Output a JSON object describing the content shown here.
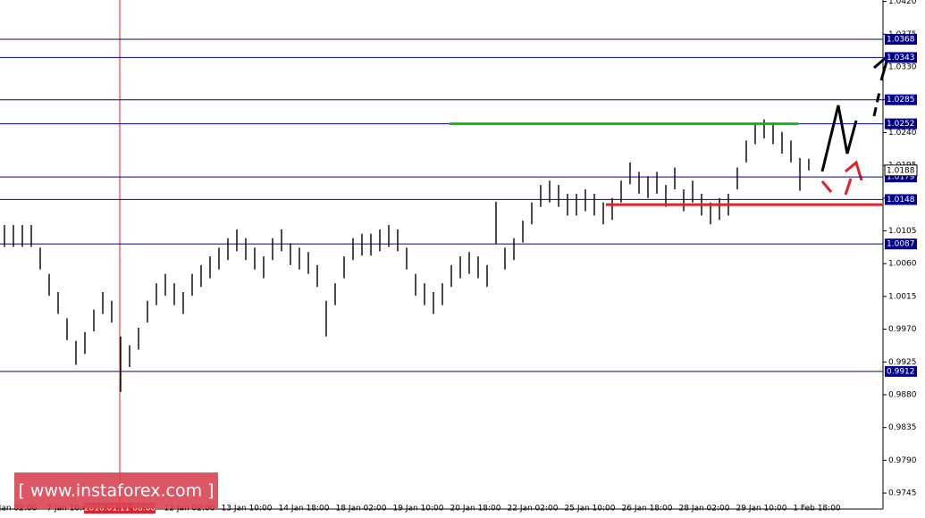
{
  "chart_data": {
    "type": "hilo",
    "color": "#000000",
    "high": [
      1.0113,
      1.0113,
      1.0113,
      1.0113,
      1.0082,
      1.0046,
      1.0021,
      0.9985,
      0.9954,
      0.9966,
      0.9997,
      1.0021,
      1.0009,
      0.996,
      0.9948,
      0.9972,
      1.0009,
      1.0033,
      1.0046,
      1.0033,
      1.0021,
      1.0046,
      1.0058,
      1.007,
      1.0082,
      1.0095,
      1.0107,
      1.0095,
      1.0082,
      1.007,
      1.0095,
      1.0107,
      1.0088,
      1.0082,
      1.0076,
      1.0058,
      1.0009,
      1.0033,
      1.007,
      1.0095,
      1.0101,
      1.0101,
      1.0107,
      1.0113,
      1.0107,
      1.0082,
      1.0046,
      1.0033,
      1.0021,
      1.0033,
      1.0058,
      1.007,
      1.0076,
      1.007,
      1.0058,
      1.0145,
      1.0082,
      1.0095,
      1.0119,
      1.0144,
      1.0168,
      1.0174,
      1.0168,
      1.0156,
      1.0156,
      1.0162,
      1.0156,
      1.0144,
      1.015,
      1.0174,
      1.0199,
      1.0186,
      1.018,
      1.0186,
      1.0168,
      1.0192,
      1.0162,
      1.0174,
      1.0156,
      1.0144,
      1.015,
      1.0156,
      1.0192,
      1.0229,
      1.0254,
      1.0258,
      1.0254,
      1.0241,
      1.0229,
      1.0205,
      1.0204
    ],
    "low": [
      1.0083,
      1.0083,
      1.0083,
      1.0083,
      1.0052,
      1.0016,
      0.9991,
      0.9955,
      0.9921,
      0.9936,
      0.9967,
      0.9991,
      0.9979,
      0.9884,
      0.9918,
      0.9942,
      0.9979,
      1.0003,
      1.0016,
      1.0003,
      0.9991,
      1.0016,
      1.0028,
      1.004,
      1.0052,
      1.0065,
      1.0077,
      1.0065,
      1.0052,
      1.004,
      1.0065,
      1.0077,
      1.0058,
      1.0052,
      1.0046,
      1.0028,
      0.996,
      1.0003,
      1.004,
      1.0065,
      1.0071,
      1.0071,
      1.0077,
      1.0083,
      1.0077,
      1.0052,
      1.0016,
      1.0003,
      0.9991,
      1.0003,
      1.0028,
      1.004,
      1.0046,
      1.004,
      1.0028,
      1.0087,
      1.0052,
      1.0065,
      1.0089,
      1.0114,
      1.0138,
      1.0144,
      1.0138,
      1.0126,
      1.0126,
      1.0132,
      1.0126,
      1.0114,
      1.012,
      1.0144,
      1.0169,
      1.0156,
      1.015,
      1.0156,
      1.0138,
      1.0162,
      1.0132,
      1.0144,
      1.0126,
      1.0114,
      1.012,
      1.0126,
      1.0162,
      1.0199,
      1.0224,
      1.0232,
      1.0224,
      1.0211,
      1.0199,
      1.016,
      1.0188
    ],
    "ylim": [
      0.9723,
      1.0422
    ],
    "yticks": [
      {
        "value": 1.042,
        "label": "1.0420"
      },
      1.0375,
      {
        "value": 1.033,
        "label": "1.0330"
      },
      1.0285,
      {
        "value": 1.024,
        "label": "1.0240"
      },
      1.0195,
      {
        "value": 1.015,
        "label": "1.0150"
      },
      1.0105,
      {
        "value": 1.006,
        "label": "1.0060"
      },
      1.0015,
      {
        "value": 0.997,
        "label": "0.9970"
      },
      0.9925,
      {
        "value": 0.988,
        "label": "0.9880"
      },
      0.9835,
      {
        "value": 0.979,
        "label": "0.9790"
      },
      0.9745
    ],
    "xlabels": [
      "Jan 02:00",
      "7 Jan 10:00",
      "12 Jan 02:00",
      "13 Jan 10:00",
      "14 Jan 18:00",
      "18 Jan 02:00",
      "19 Jan 10:00",
      "20 Jan 18:00",
      "22 Jan 02:00",
      "25 Jan 10:00",
      "26 Jan 18:00",
      "28 Jan 02:00",
      "29 Jan 10:00",
      "1 Feb 18:00"
    ],
    "crosshair_label": "2016.01.11 08:00",
    "levels": [
      1.0368,
      1.0343,
      1.0285,
      1.0252,
      1.0179,
      1.0148,
      1.0087,
      0.9912
    ],
    "level_color": "#00008b",
    "current_price": 1.0188,
    "lines": [
      {
        "value": 1.0252,
        "color": "#22b022"
      },
      {
        "value": 1.0141,
        "color": "#e0202a"
      }
    ],
    "watermark": "[  www.instaforex.com  ]"
  }
}
